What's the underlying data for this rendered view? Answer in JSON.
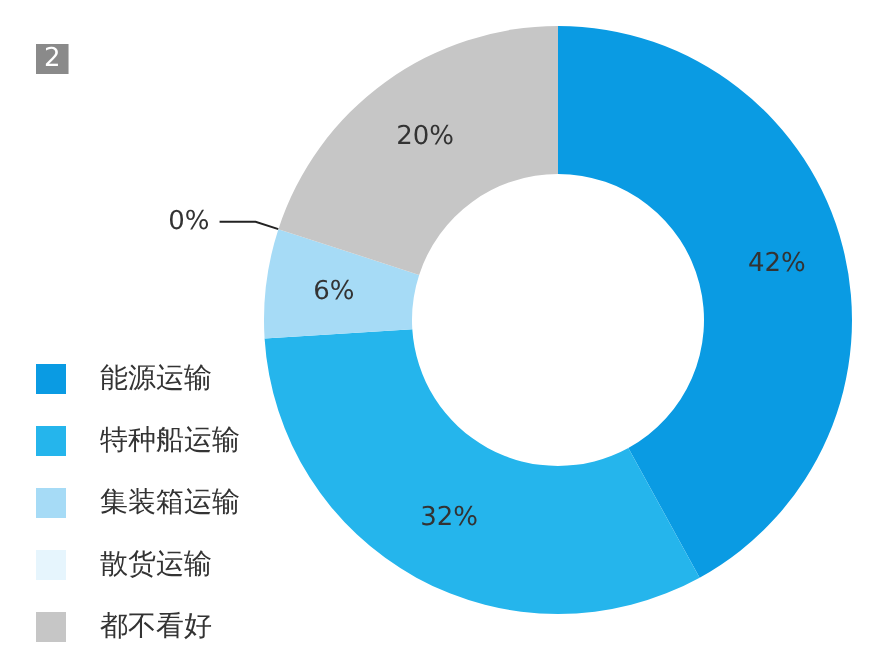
{
  "chart_data": {
    "type": "donut",
    "title": "2",
    "categories": [
      "能源运输",
      "特种船运输",
      "集装箱运输",
      "散货运输",
      "都不看好"
    ],
    "values": [
      42,
      32,
      6,
      0,
      20
    ],
    "value_labels": [
      "42%",
      "32%",
      "6%",
      "0%",
      "20%"
    ],
    "colors": [
      "#0a9be3",
      "#25b5ec",
      "#a6dbf6",
      "#e6f5fd",
      "#c6c6c6"
    ],
    "legend": "left"
  }
}
